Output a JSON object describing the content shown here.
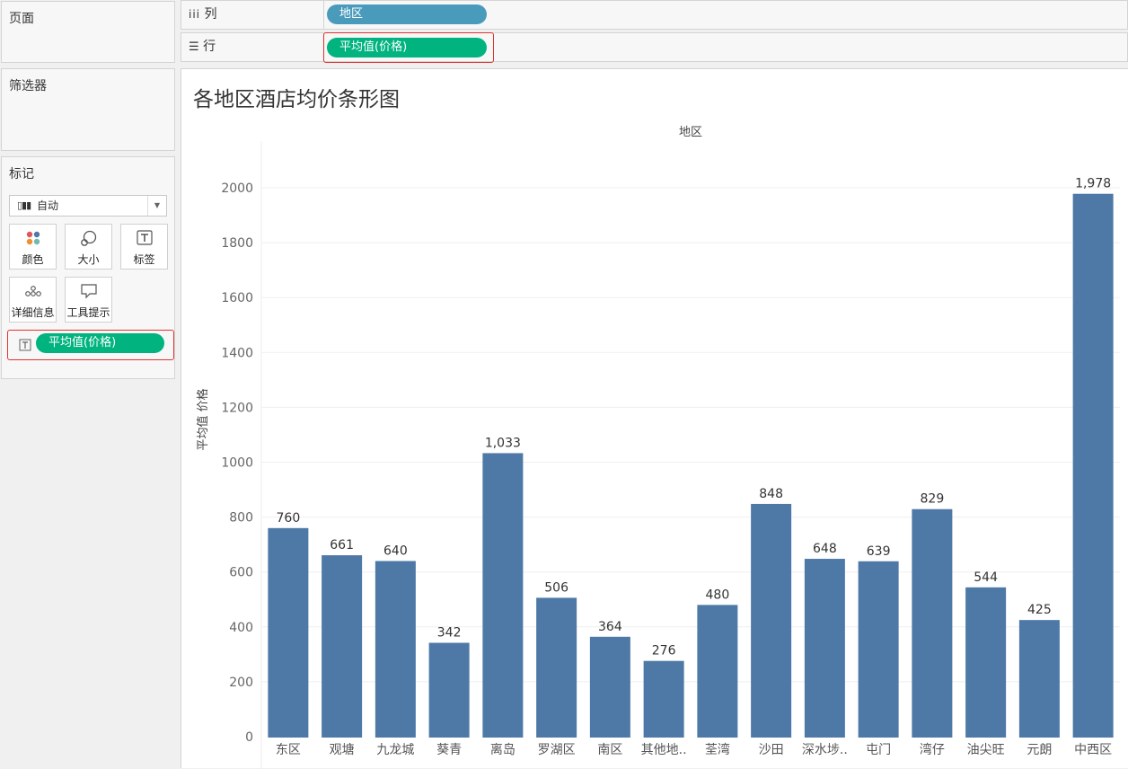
{
  "panels": {
    "pages": {
      "title": "页面"
    },
    "filters": {
      "title": "筛选器"
    },
    "marks": {
      "title": "标记",
      "type_select": "自动",
      "buttons": [
        {
          "label": "颜色",
          "icon": "color-icon"
        },
        {
          "label": "大小",
          "icon": "size-icon"
        },
        {
          "label": "标签",
          "icon": "label-icon"
        },
        {
          "label": "详细信息",
          "icon": "detail-icon"
        },
        {
          "label": "工具提示",
          "icon": "tooltip-icon"
        }
      ],
      "field_pill": "平均值(价格)"
    }
  },
  "shelves": {
    "columns": {
      "label": "列",
      "pill": "地区"
    },
    "rows": {
      "label": "行",
      "pill": "平均值(价格)"
    }
  },
  "colors": {
    "bar": "#4e79a7",
    "dimension_pill": "#4a9bbb",
    "measure_pill": "#00b37f",
    "highlight": "#e0332f"
  },
  "chart_data": {
    "type": "bar",
    "title": "各地区酒店均价条形图",
    "header": "地区",
    "ylabel": "平均值 价格",
    "ylim": [
      0,
      2100
    ],
    "yticks": [
      0,
      200,
      400,
      600,
      800,
      1000,
      1200,
      1400,
      1600,
      1800,
      2000
    ],
    "categories": [
      "东区",
      "观塘",
      "九龙城",
      "葵青",
      "离岛",
      "罗湖区",
      "南区",
      "其他地..",
      "荃湾",
      "沙田",
      "深水埗..",
      "屯门",
      "湾仔",
      "油尖旺",
      "元朗",
      "中西区"
    ],
    "values": [
      760,
      661,
      640,
      342,
      1033,
      506,
      364,
      276,
      480,
      848,
      648,
      639,
      829,
      544,
      425,
      1978
    ],
    "data_labels": [
      "760",
      "661",
      "640",
      "342",
      "1,033",
      "506",
      "364",
      "276",
      "480",
      "848",
      "648",
      "639",
      "829",
      "544",
      "425",
      "1,978"
    ],
    "grid": true
  }
}
